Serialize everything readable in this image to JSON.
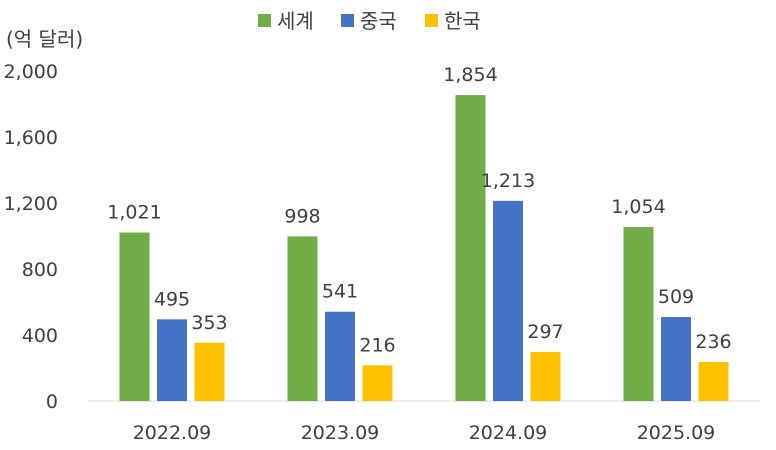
{
  "chart_data": {
    "type": "bar",
    "title": "",
    "ylabel": "(억 달러)",
    "xlabel": "",
    "categories": [
      "2022.09",
      "2023.09",
      "2024.09",
      "2025.09"
    ],
    "series": [
      {
        "name": "세계",
        "color": "#70AD47",
        "values": [
          1021,
          998,
          1854,
          1054
        ],
        "labels": [
          "1,021",
          "998",
          "1,854",
          "1,054"
        ]
      },
      {
        "name": "중국",
        "color": "#4472C4",
        "values": [
          495,
          541,
          1213,
          509
        ],
        "labels": [
          "495",
          "541",
          "1,213",
          "509"
        ]
      },
      {
        "name": "한국",
        "color": "#FFC000",
        "values": [
          353,
          216,
          297,
          236
        ],
        "labels": [
          "353",
          "216",
          "297",
          "236"
        ]
      }
    ],
    "ylim": [
      0,
      2000
    ],
    "yticks": [
      0,
      400,
      800,
      1200,
      1600,
      2000
    ],
    "ytick_labels": [
      "0",
      "400",
      "800",
      "1,200",
      "1,600",
      "2,000"
    ],
    "grid": false,
    "legend": "top-center"
  }
}
